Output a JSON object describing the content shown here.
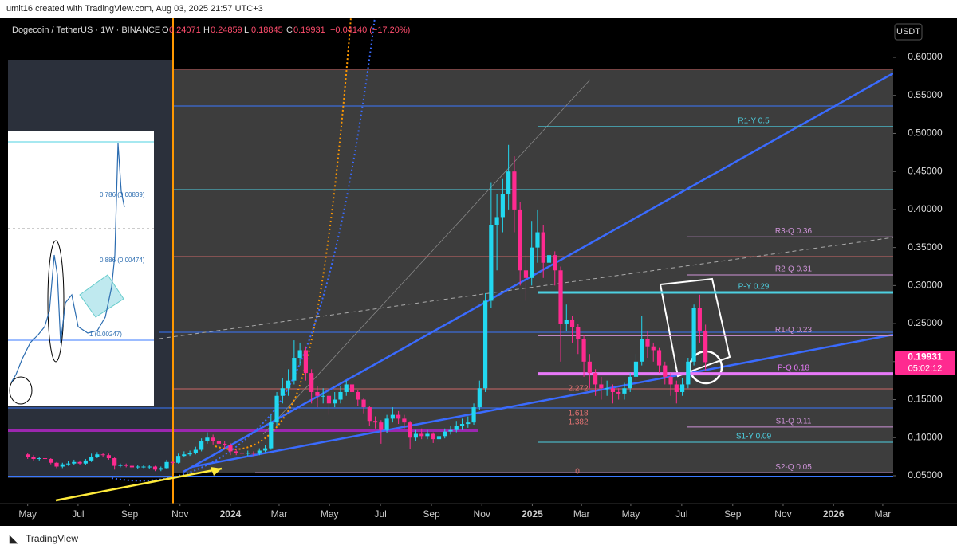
{
  "header": {
    "credit": "umit16 created with TradingView.com, Aug 03, 2025 21:57 UTC+3"
  },
  "footer": {
    "brand": "TradingView"
  },
  "chart_data": {
    "type": "candlestick",
    "title": "Dogecoin / TetherUS · 1W · BINANCE",
    "ohlc_keys": [
      "O",
      "H",
      "L",
      "C"
    ],
    "change_text": "−0.04140 (−17.20%)",
    "currency": "USDT",
    "countdown": "05:02:12",
    "ylim": [
      0.0133,
      0.6524
    ],
    "yticks": [
      {
        "value": 0.05,
        "label": "0.05000"
      },
      {
        "value": 0.1,
        "label": "0.10000"
      },
      {
        "value": 0.15,
        "label": "0.15000"
      },
      {
        "value": 0.2,
        "label": "0.20000"
      },
      {
        "value": 0.25,
        "label": "0.25000"
      },
      {
        "value": 0.3,
        "label": "0.30000"
      },
      {
        "value": 0.35,
        "label": "0.35000"
      },
      {
        "value": 0.4,
        "label": "0.40000"
      },
      {
        "value": 0.45,
        "label": "0.45000"
      },
      {
        "value": 0.5,
        "label": "0.50000"
      },
      {
        "value": 0.55,
        "label": "0.55000"
      },
      {
        "value": 0.6,
        "label": "0.60000"
      }
    ],
    "xlim": [
      -3.4,
      149.4
    ],
    "xticks": [
      {
        "value": 0,
        "label": "May"
      },
      {
        "value": 8.7,
        "label": "Jul"
      },
      {
        "value": 17.6,
        "label": "Sep"
      },
      {
        "value": 26.3,
        "label": "Nov"
      },
      {
        "value": 35,
        "label": "2024"
      },
      {
        "value": 43.4,
        "label": "Mar"
      },
      {
        "value": 52.1,
        "label": "May"
      },
      {
        "value": 60.9,
        "label": "Jul"
      },
      {
        "value": 69.7,
        "label": "Sep"
      },
      {
        "value": 78.4,
        "label": "Nov"
      },
      {
        "value": 87.1,
        "label": "2025"
      },
      {
        "value": 95.6,
        "label": "Mar"
      },
      {
        "value": 104.1,
        "label": "May"
      },
      {
        "value": 112.9,
        "label": "Jul"
      },
      {
        "value": 121.7,
        "label": "Sep"
      },
      {
        "value": 130.4,
        "label": "Nov"
      },
      {
        "value": 139.1,
        "label": "2026"
      },
      {
        "value": 147.6,
        "label": "Mar"
      }
    ],
    "series": [
      {
        "name": "Dogecoin / TetherUS",
        "up_color": "#22d8f0",
        "down_color": "#ff2a90",
        "open": [
          0.078,
          0.075,
          0.072,
          0.073,
          0.072,
          0.067,
          0.062,
          0.065,
          0.066,
          0.068,
          0.066,
          0.07,
          0.075,
          0.078,
          0.077,
          0.073,
          0.063,
          0.064,
          0.063,
          0.061,
          0.062,
          0.062,
          0.062,
          0.058,
          0.06,
          0.068,
          0.067,
          0.076,
          0.078,
          0.08,
          0.084,
          0.095,
          0.1,
          0.095,
          0.092,
          0.09,
          0.082,
          0.08,
          0.079,
          0.08,
          0.079,
          0.083,
          0.086,
          0.12,
          0.155,
          0.165,
          0.175,
          0.205,
          0.215,
          0.185,
          0.16,
          0.155,
          0.155,
          0.145,
          0.15,
          0.16,
          0.17,
          0.16,
          0.15,
          0.14,
          0.122,
          0.12,
          0.11,
          0.125,
          0.13,
          0.125,
          0.12,
          0.1,
          0.105,
          0.102,
          0.105,
          0.098,
          0.102,
          0.108,
          0.11,
          0.115,
          0.118,
          0.12,
          0.14,
          0.165,
          0.28,
          0.38,
          0.39,
          0.42,
          0.45,
          0.4,
          0.32,
          0.31,
          0.35,
          0.37,
          0.33,
          0.34,
          0.32,
          0.25,
          0.255,
          0.245,
          0.23,
          0.2,
          0.185,
          0.17,
          0.165,
          0.165,
          0.16,
          0.158,
          0.165,
          0.18,
          0.2,
          0.23,
          0.22,
          0.215,
          0.195,
          0.18,
          0.17,
          0.16,
          0.17,
          0.2,
          0.27,
          0.24071
        ],
        "high": [
          0.08,
          0.077,
          0.075,
          0.075,
          0.073,
          0.068,
          0.067,
          0.069,
          0.071,
          0.07,
          0.072,
          0.079,
          0.081,
          0.08,
          0.079,
          0.074,
          0.066,
          0.066,
          0.065,
          0.064,
          0.064,
          0.064,
          0.063,
          0.062,
          0.071,
          0.07,
          0.079,
          0.082,
          0.083,
          0.088,
          0.099,
          0.107,
          0.104,
          0.098,
          0.095,
          0.093,
          0.085,
          0.083,
          0.083,
          0.082,
          0.086,
          0.09,
          0.13,
          0.16,
          0.178,
          0.19,
          0.228,
          0.225,
          0.22,
          0.19,
          0.168,
          0.165,
          0.16,
          0.16,
          0.168,
          0.175,
          0.172,
          0.163,
          0.152,
          0.142,
          0.128,
          0.123,
          0.13,
          0.14,
          0.135,
          0.13,
          0.122,
          0.11,
          0.112,
          0.11,
          0.107,
          0.106,
          0.112,
          0.115,
          0.122,
          0.125,
          0.128,
          0.145,
          0.175,
          0.29,
          0.435,
          0.42,
          0.44,
          0.485,
          0.47,
          0.41,
          0.34,
          0.385,
          0.4,
          0.38,
          0.365,
          0.345,
          0.325,
          0.275,
          0.26,
          0.25,
          0.235,
          0.21,
          0.19,
          0.18,
          0.175,
          0.17,
          0.165,
          0.172,
          0.185,
          0.21,
          0.26,
          0.24,
          0.225,
          0.218,
          0.2,
          0.185,
          0.175,
          0.178,
          0.205,
          0.275,
          0.288,
          0.24859
        ],
        "low": [
          0.072,
          0.07,
          0.07,
          0.07,
          0.065,
          0.06,
          0.06,
          0.063,
          0.064,
          0.064,
          0.064,
          0.068,
          0.073,
          0.074,
          0.071,
          0.058,
          0.061,
          0.061,
          0.059,
          0.059,
          0.06,
          0.059,
          0.056,
          0.056,
          0.059,
          0.064,
          0.066,
          0.074,
          0.076,
          0.078,
          0.082,
          0.092,
          0.091,
          0.088,
          0.086,
          0.077,
          0.077,
          0.076,
          0.076,
          0.076,
          0.077,
          0.081,
          0.084,
          0.115,
          0.145,
          0.155,
          0.17,
          0.195,
          0.175,
          0.145,
          0.14,
          0.145,
          0.13,
          0.14,
          0.145,
          0.155,
          0.152,
          0.142,
          0.132,
          0.115,
          0.112,
          0.092,
          0.106,
          0.12,
          0.118,
          0.112,
          0.085,
          0.095,
          0.098,
          0.098,
          0.093,
          0.094,
          0.099,
          0.104,
          0.107,
          0.11,
          0.113,
          0.117,
          0.136,
          0.16,
          0.27,
          0.32,
          0.37,
          0.4,
          0.37,
          0.3,
          0.28,
          0.3,
          0.33,
          0.31,
          0.32,
          0.3,
          0.2,
          0.24,
          0.225,
          0.21,
          0.18,
          0.165,
          0.155,
          0.15,
          0.155,
          0.145,
          0.15,
          0.15,
          0.16,
          0.175,
          0.195,
          0.205,
          0.2,
          0.185,
          0.17,
          0.155,
          0.145,
          0.155,
          0.165,
          0.195,
          0.225,
          0.18845
        ],
        "close": [
          0.075,
          0.072,
          0.073,
          0.072,
          0.067,
          0.062,
          0.065,
          0.066,
          0.068,
          0.066,
          0.07,
          0.075,
          0.078,
          0.077,
          0.073,
          0.063,
          0.064,
          0.063,
          0.061,
          0.062,
          0.062,
          0.062,
          0.058,
          0.06,
          0.068,
          0.067,
          0.076,
          0.078,
          0.08,
          0.084,
          0.095,
          0.1,
          0.095,
          0.092,
          0.09,
          0.082,
          0.08,
          0.079,
          0.08,
          0.079,
          0.083,
          0.086,
          0.12,
          0.155,
          0.165,
          0.175,
          0.205,
          0.215,
          0.185,
          0.16,
          0.155,
          0.155,
          0.145,
          0.15,
          0.16,
          0.17,
          0.16,
          0.15,
          0.14,
          0.122,
          0.12,
          0.11,
          0.125,
          0.13,
          0.125,
          0.12,
          0.1,
          0.105,
          0.102,
          0.105,
          0.098,
          0.102,
          0.108,
          0.11,
          0.115,
          0.118,
          0.12,
          0.14,
          0.165,
          0.28,
          0.38,
          0.39,
          0.42,
          0.45,
          0.4,
          0.32,
          0.31,
          0.35,
          0.37,
          0.33,
          0.34,
          0.32,
          0.25,
          0.255,
          0.245,
          0.23,
          0.2,
          0.185,
          0.17,
          0.165,
          0.165,
          0.16,
          0.158,
          0.165,
          0.18,
          0.2,
          0.23,
          0.22,
          0.215,
          0.195,
          0.18,
          0.17,
          0.16,
          0.17,
          0.2,
          0.27,
          0.24071,
          0.19931
        ]
      }
    ],
    "levels": [
      {
        "label": "R1-Y 0.5",
        "value": 0.509,
        "color": "#4dd0e1"
      },
      {
        "label": "R3-Q 0.36",
        "value": 0.364,
        "color": "#ce93d8"
      },
      {
        "label": "R2-Q 0.31",
        "value": 0.314,
        "color": "#ce93d8"
      },
      {
        "label": "P-Y 0.29",
        "value": 0.291,
        "color": "#4dd0e1"
      },
      {
        "label": "R1-Q 0.23",
        "value": 0.234,
        "color": "#ce93d8"
      },
      {
        "label": "P-Q 0.18",
        "value": 0.184,
        "color": "#e879f9"
      },
      {
        "label": "S1-Q 0.11",
        "value": 0.114,
        "color": "#ce93d8"
      },
      {
        "label": "S1-Y 0.09",
        "value": 0.094,
        "color": "#4dd0e1"
      },
      {
        "label": "S2-Q 0.05",
        "value": 0.054,
        "color": "#ce93d8"
      }
    ],
    "fib_labels": [
      "2.272",
      "1.618",
      "1.382",
      "0"
    ],
    "inset_labels": [
      "0.786 (0.00839)",
      "0.886 (0.00474)",
      "1 (0.00247)"
    ]
  }
}
